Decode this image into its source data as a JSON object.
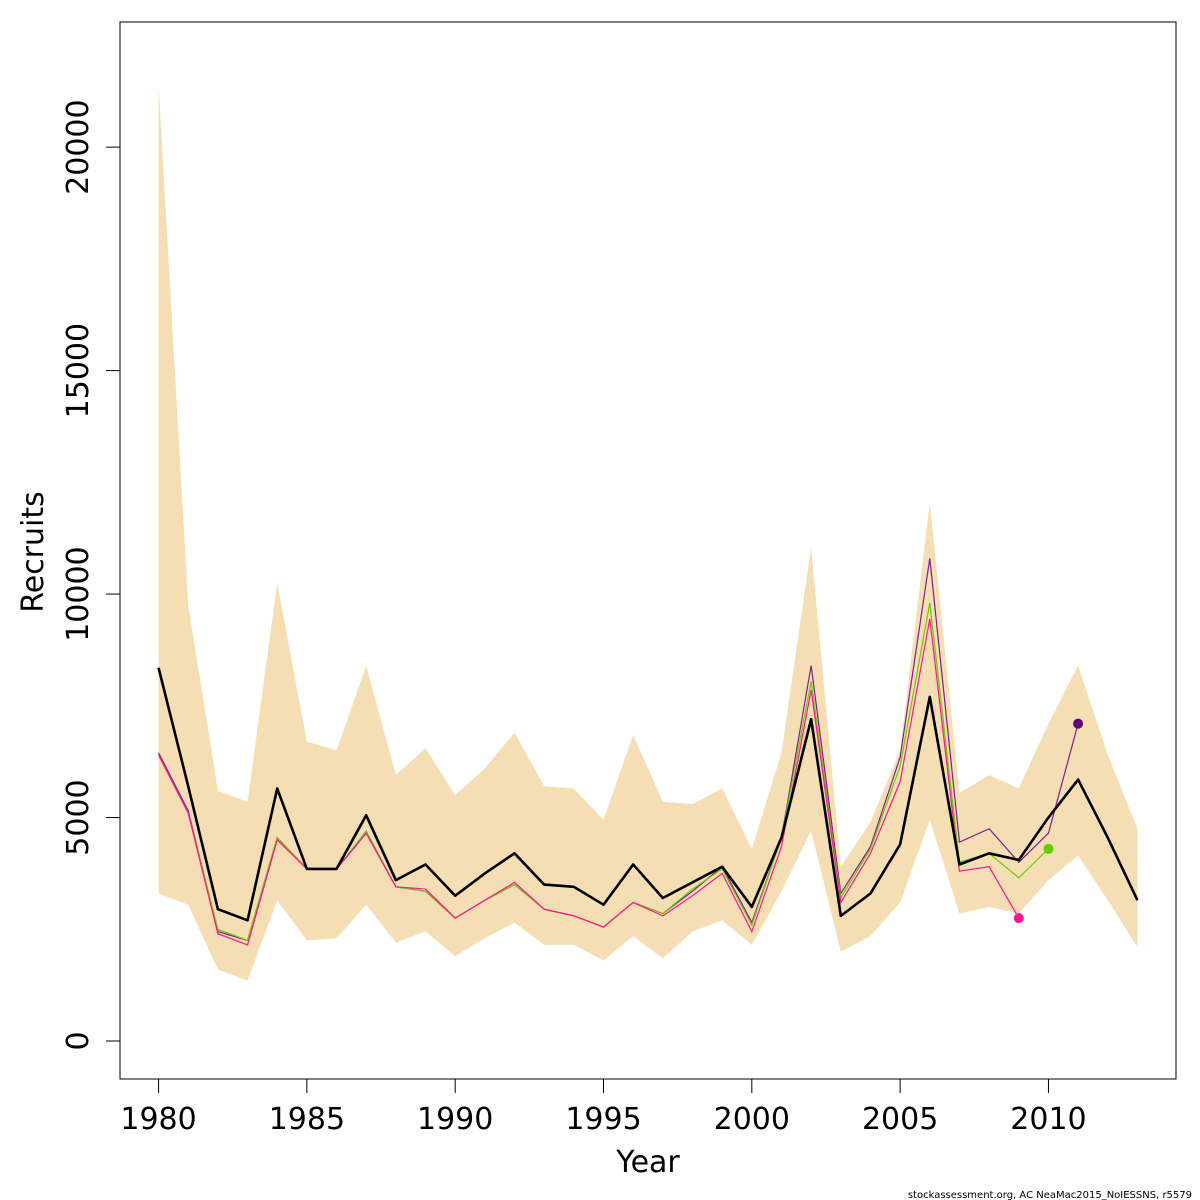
{
  "chart_data": {
    "type": "line",
    "xlabel": "Year",
    "ylabel": "Recruits",
    "xlim": [
      1978.7,
      1914.3
    ],
    "ylim": [
      -850,
      22800
    ],
    "x_ticks": [
      1980,
      1985,
      1990,
      1995,
      2000,
      2005,
      2010
    ],
    "y_ticks": [
      0,
      5000,
      10000,
      15000,
      20000
    ],
    "grid": false,
    "legend": "none",
    "colors": {
      "band": "#f5deb3",
      "main": "#000000",
      "purple": "#7b1f8f",
      "green": "#66cc00",
      "pink": "#ff1493",
      "dark_purple": "#5a0a7a"
    },
    "years": [
      1980,
      1981,
      1982,
      1983,
      1984,
      1985,
      1986,
      1987,
      1988,
      1989,
      1990,
      1991,
      1992,
      1993,
      1994,
      1995,
      1996,
      1997,
      1998,
      1999,
      2000,
      2001,
      2002,
      2003,
      2004,
      2005,
      2006,
      2007,
      2008,
      2009,
      2010,
      2011,
      2012,
      2013
    ],
    "band_upper": [
      21400,
      9750,
      5600,
      5350,
      10250,
      6700,
      6500,
      8400,
      5950,
      6550,
      5500,
      6100,
      6900,
      5700,
      5650,
      4950,
      6850,
      5350,
      5300,
      5650,
      4300,
      6450,
      11050,
      3900,
      4900,
      6500,
      12050,
      5550,
      5950,
      5650,
      7100,
      8400,
      6400,
      4750
    ],
    "band_lower": [
      3300,
      3050,
      1600,
      1350,
      3150,
      2250,
      2300,
      3050,
      2200,
      2450,
      1900,
      2300,
      2650,
      2150,
      2150,
      1800,
      2350,
      1850,
      2450,
      2700,
      2150,
      3350,
      4700,
      2000,
      2350,
      3100,
      4950,
      2850,
      3000,
      2850,
      3600,
      4150,
      3150,
      2100
    ],
    "main_series": [
      8350,
      5700,
      2950,
      2700,
      5650,
      3850,
      3850,
      5050,
      3600,
      3950,
      3250,
      3750,
      4200,
      3500,
      3450,
      3050,
      3950,
      3200,
      3550,
      3900,
      3000,
      4550,
      7200,
      2800,
      3300,
      4400,
      7700,
      3950,
      4200,
      4050,
      5000,
      5850,
      4550,
      3150
    ],
    "series": [
      {
        "color": "#7b1f8f",
        "values": [
          6450,
          5150,
          2450,
          2250,
          4550,
          3850,
          3850,
          4650,
          3450,
          3350,
          2750,
          3150,
          3500,
          2950,
          2800,
          2550,
          3100,
          2850,
          3350,
          3900,
          2650,
          4550,
          8400,
          3300,
          4350,
          6350,
          10800,
          4450,
          4750,
          4000,
          4650,
          7100
        ],
        "end_point": {
          "x": 2011,
          "y": 7100
        }
      },
      {
        "color": "#66cc00",
        "values": [
          6400,
          5100,
          2500,
          2250,
          4550,
          3850,
          3850,
          4700,
          3450,
          3350,
          2750,
          3150,
          3500,
          2950,
          2800,
          2550,
          3100,
          2850,
          3400,
          3850,
          2600,
          4550,
          8050,
          3200,
          4300,
          6150,
          9800,
          4000,
          4200,
          3650,
          4300
        ],
        "end_point": {
          "x": 2010,
          "y": 4300
        }
      },
      {
        "color": "#ff1493",
        "values": [
          6400,
          5100,
          2400,
          2150,
          4500,
          3850,
          3850,
          4650,
          3450,
          3400,
          2750,
          3150,
          3550,
          2950,
          2800,
          2550,
          3100,
          2800,
          3250,
          3750,
          2450,
          4350,
          7850,
          3100,
          4200,
          5800,
          9450,
          3800,
          3900,
          2750
        ],
        "end_point": {
          "x": 2009,
          "y": 2750
        }
      }
    ],
    "footer": "stockassessment.org, AC  NeaMac2015_NoIESSNS, r5579"
  }
}
